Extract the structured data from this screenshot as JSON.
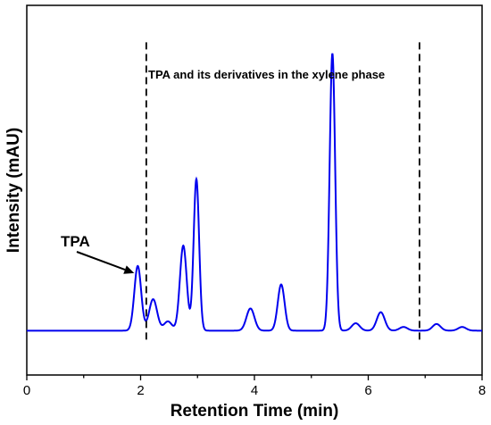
{
  "chart_data": {
    "type": "line",
    "title": "",
    "xlabel": "Retention Time (min)",
    "ylabel": "Intensity (mAU)",
    "xlim": [
      0,
      8
    ],
    "ylim": [
      0,
      1.0
    ],
    "x_ticks": [
      "0",
      "2",
      "4",
      "6",
      "8"
    ],
    "y_ticks_labeled": false,
    "grid": false,
    "legend": "none",
    "line_color": "#0000ee",
    "baseline": 0.12,
    "peaks": [
      {
        "rt": 1.95,
        "height": 0.175
      },
      {
        "rt": 2.22,
        "height": 0.085
      },
      {
        "rt": 2.48,
        "height": 0.025
      },
      {
        "rt": 2.75,
        "height": 0.23
      },
      {
        "rt": 2.98,
        "height": 0.41
      },
      {
        "rt": 3.93,
        "height": 0.06
      },
      {
        "rt": 4.47,
        "height": 0.125
      },
      {
        "rt": 5.37,
        "height": 0.75
      },
      {
        "rt": 5.78,
        "height": 0.02
      },
      {
        "rt": 6.22,
        "height": 0.05
      },
      {
        "rt": 6.62,
        "height": 0.01
      },
      {
        "rt": 7.2,
        "height": 0.018
      },
      {
        "rt": 7.65,
        "height": 0.01
      }
    ],
    "vertical_lines": [
      {
        "x": 2.1,
        "style": "dashed"
      },
      {
        "x": 6.9,
        "style": "dashed"
      }
    ],
    "annotations": {
      "region_text": "TPA and its derivatives in the xylene phase",
      "peak_label": "TPA",
      "peak_label_target_rt": 1.95
    }
  }
}
